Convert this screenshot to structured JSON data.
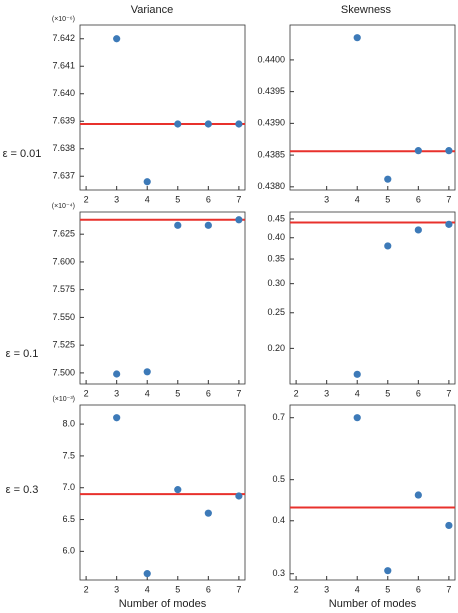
{
  "column_titles": [
    "Variance",
    "Skewness"
  ],
  "row_labels": [
    "ε = 0.01",
    "ε = 0.1",
    "ε = 0.3"
  ],
  "chart_data": [
    {
      "type": "scatter",
      "y_multiplier": "(×10⁻⁶)",
      "x": [
        3,
        4,
        5,
        6,
        7
      ],
      "values": [
        7.642,
        7.6368,
        7.6389,
        7.6389,
        7.6389
      ],
      "color": "#3d7ab8",
      "hline": 7.6389,
      "hline_color": "#e8312c",
      "xlim": [
        1.8,
        7.2
      ],
      "xticks": [
        2,
        3,
        4,
        5,
        6,
        7
      ],
      "ylim": [
        7.6365,
        7.6425
      ],
      "yticks": [
        {
          "value": 7.637,
          "label": "7.637"
        },
        {
          "value": 7.638,
          "label": "7.638"
        },
        {
          "value": 7.639,
          "label": "7.639"
        },
        {
          "value": 7.64,
          "label": "7.640"
        },
        {
          "value": 7.641,
          "label": "7.641"
        },
        {
          "value": 7.642,
          "label": "7.642"
        }
      ],
      "log_y": false
    },
    {
      "type": "scatter",
      "x": [
        4,
        5,
        6,
        7
      ],
      "values": [
        0.44035,
        0.43812,
        0.43857,
        0.43857
      ],
      "color": "#3d7ab8",
      "hline": 0.43856,
      "hline_color": "#e8312c",
      "xlim": [
        1.8,
        7.2
      ],
      "xticks": [
        3,
        4,
        5,
        6,
        7
      ],
      "ylim": [
        0.43795,
        0.44055
      ],
      "yticks": [
        {
          "value": 0.438,
          "label": "0.4380"
        },
        {
          "value": 0.4385,
          "label": "0.4385"
        },
        {
          "value": 0.439,
          "label": "0.4390"
        },
        {
          "value": 0.4395,
          "label": "0.4395"
        },
        {
          "value": 0.44,
          "label": "0.4400"
        }
      ],
      "log_y": false
    },
    {
      "type": "scatter",
      "y_multiplier": "(×10⁻⁴)",
      "x": [
        3,
        4,
        5,
        6,
        7
      ],
      "values": [
        7.499,
        7.501,
        7.633,
        7.633,
        7.638
      ],
      "color": "#3d7ab8",
      "hline": 7.638,
      "hline_color": "#e8312c",
      "xlim": [
        1.8,
        7.2
      ],
      "xticks": [
        2,
        3,
        4,
        5,
        6,
        7
      ],
      "ylim": [
        7.49,
        7.645
      ],
      "yticks": [
        {
          "value": 7.5,
          "label": "7.500"
        },
        7.525,
        {
          "value": 7.55,
          "label": "7.550"
        },
        7.575,
        {
          "value": 7.6,
          "label": "7.600"
        },
        7.625
      ],
      "log_y": false
    },
    {
      "type": "scatter",
      "x": [
        4,
        5,
        6,
        7
      ],
      "values": [
        0.17,
        0.38,
        0.42,
        0.435
      ],
      "color": "#3d7ab8",
      "hline": 0.44,
      "hline_color": "#e8312c",
      "xlim": [
        1.8,
        7.2
      ],
      "xticks": [
        2,
        3,
        4,
        5,
        6,
        7
      ],
      "ylim": [
        0.16,
        0.47
      ],
      "yticks": [
        {
          "value": 0.2,
          "label": "0.20"
        },
        0.25,
        {
          "value": 0.3,
          "label": "0.30"
        },
        0.35,
        {
          "value": 0.4,
          "label": "0.40"
        },
        0.45
      ],
      "log_y": true
    },
    {
      "type": "scatter",
      "y_multiplier": "(×10⁻³)",
      "xlabel": "Number of modes",
      "x": [
        3,
        4,
        5,
        6,
        7
      ],
      "values": [
        8.1,
        5.65,
        6.97,
        6.6,
        6.87
      ],
      "color": "#3d7ab8",
      "hline": 6.9,
      "hline_color": "#e8312c",
      "xlim": [
        1.8,
        7.2
      ],
      "xticks": [
        2,
        3,
        4,
        5,
        6,
        7
      ],
      "ylim": [
        5.55,
        8.3
      ],
      "yticks": [
        {
          "value": 6,
          "label": "6.0"
        },
        6.5,
        {
          "value": 7,
          "label": "7.0"
        },
        7.5,
        {
          "value": 8,
          "label": "8.0"
        }
      ],
      "log_y": false
    },
    {
      "type": "scatter",
      "xlabel": "Number of modes",
      "x": [
        4,
        5,
        6,
        7
      ],
      "values": [
        0.7,
        0.305,
        0.46,
        0.39
      ],
      "color": "#3d7ab8",
      "hline": 0.43,
      "hline_color": "#e8312c",
      "xlim": [
        1.8,
        7.2
      ],
      "xticks": [
        2,
        3,
        4,
        5,
        6,
        7
      ],
      "ylim": [
        0.29,
        0.75
      ],
      "yticks": [
        0.3,
        0.4,
        0.5,
        0.7
      ],
      "log_y": true
    }
  ]
}
